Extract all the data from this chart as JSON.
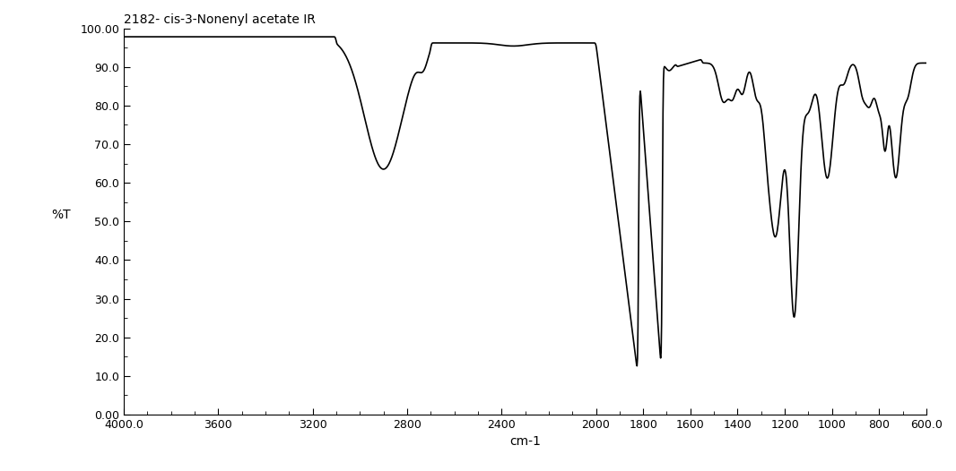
{
  "title": "2182- cis-3-Nonenyl acetate IR",
  "xlabel": "cm-1",
  "ylabel": "%T",
  "xlim": [
    4000.0,
    600.0
  ],
  "ylim": [
    0.0,
    100.0
  ],
  "xticks": [
    4000.0,
    3600,
    3200,
    2800,
    2400,
    2000,
    1800,
    1600,
    1400,
    1200,
    1000,
    800,
    600.0
  ],
  "yticks": [
    0.0,
    10.0,
    20.0,
    30.0,
    40.0,
    50.0,
    60.0,
    70.0,
    80.0,
    90.0,
    100.0
  ],
  "background_color": "#ffffff",
  "line_color": "#000000",
  "line_width": 1.2
}
